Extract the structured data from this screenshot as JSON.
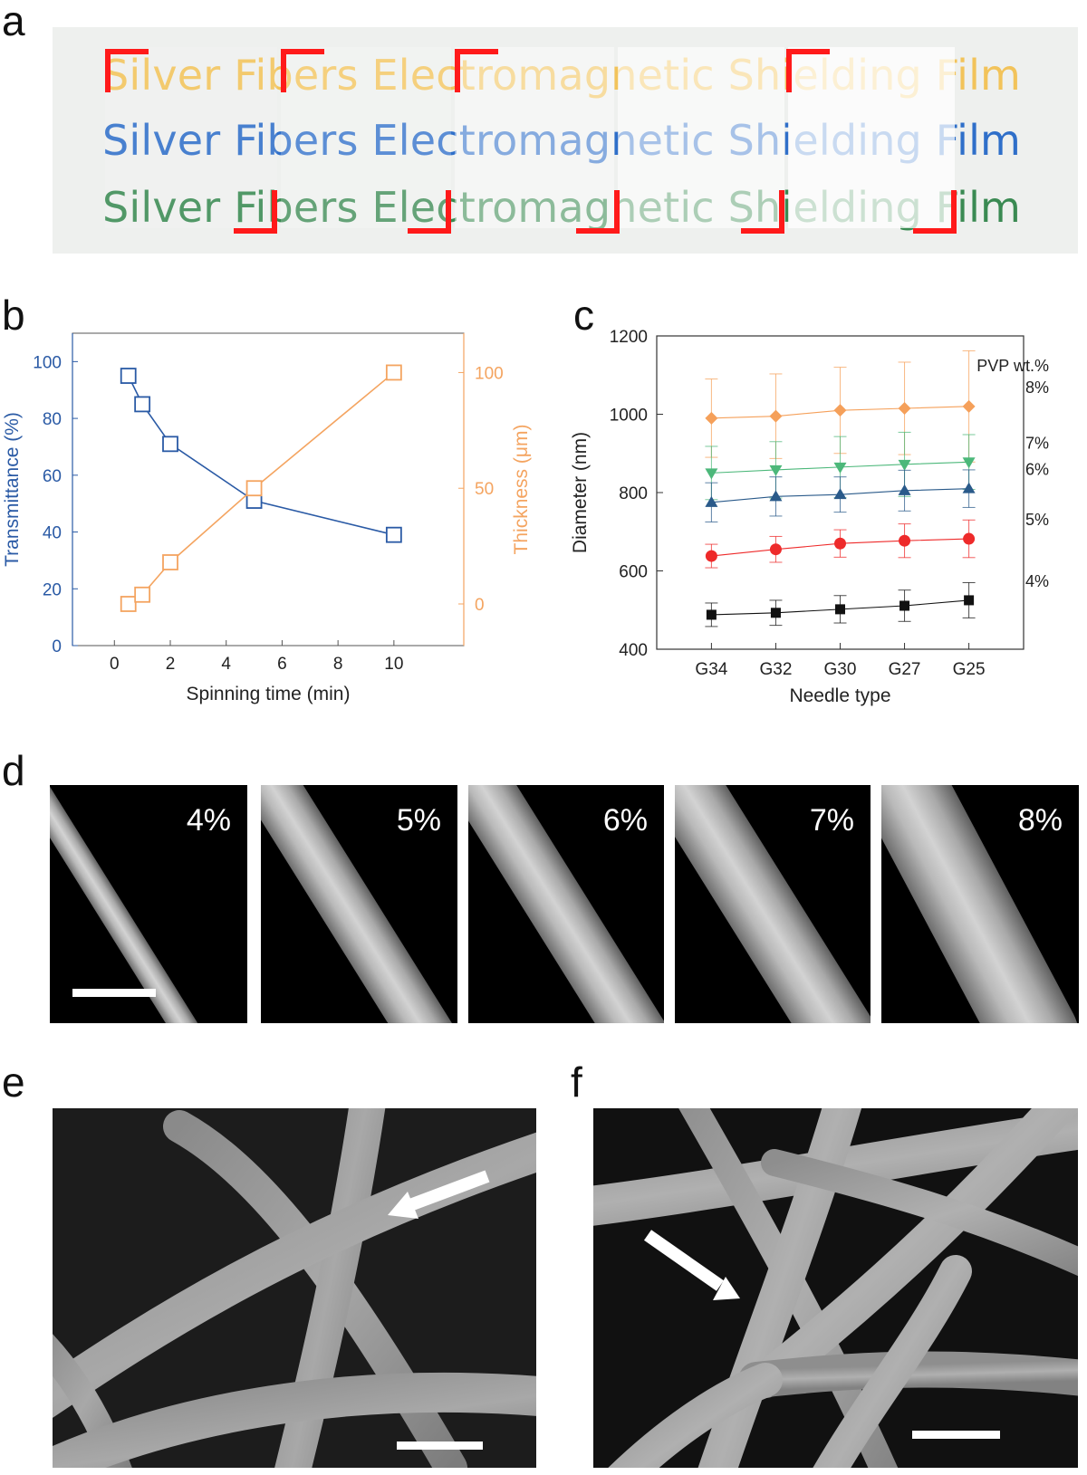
{
  "panels": {
    "a": {
      "label": "a",
      "film_text": "Silver Fibers Electromagnetic Shielding Film",
      "line_colors": [
        "#f2c35a",
        "#2f6fc9",
        "#3a8a52"
      ]
    },
    "b": {
      "label": "b"
    },
    "c": {
      "label": "c"
    },
    "d": {
      "label": "d",
      "images": [
        {
          "label": "4%"
        },
        {
          "label": "5%"
        },
        {
          "label": "6%"
        },
        {
          "label": "7%"
        },
        {
          "label": "8%"
        }
      ]
    },
    "e": {
      "label": "e"
    },
    "f": {
      "label": "f"
    }
  },
  "chart_data": [
    {
      "id": "panel-b",
      "type": "line",
      "xlabel": "Spinning time (min)",
      "ylabel_left": "Transmittance (%)",
      "ylabel_right": "Thickness (μm)",
      "xlim": [
        -1.5,
        12.5
      ],
      "xticks": [
        0,
        2,
        4,
        6,
        8,
        10
      ],
      "ylim_left": [
        0,
        110
      ],
      "yticks_left": [
        0,
        20,
        40,
        60,
        80,
        100
      ],
      "ylim_right": [
        -18,
        117
      ],
      "yticks_right": [
        0,
        50,
        100
      ],
      "series": [
        {
          "axis": "left",
          "color": "#2a5aa5",
          "marker": "open-square",
          "x": [
            0.5,
            1,
            2,
            5,
            10
          ],
          "y": [
            95,
            85,
            71,
            51,
            39
          ]
        },
        {
          "axis": "right",
          "color": "#f4a460",
          "marker": "open-square",
          "x": [
            0.5,
            1,
            2,
            5,
            10
          ],
          "y": [
            0,
            4,
            18,
            50,
            100
          ]
        }
      ]
    },
    {
      "id": "panel-c",
      "type": "scatter",
      "xlabel": "Needle type",
      "ylabel": "Diameter (nm)",
      "categories": [
        "G34",
        "G32",
        "G30",
        "G27",
        "G25"
      ],
      "ylim": [
        400,
        1200
      ],
      "yticks": [
        400,
        600,
        800,
        1000,
        1200
      ],
      "legend_title": "PVP wt.%",
      "series": [
        {
          "name": "8%",
          "color": "#f5a05a",
          "marker": "diamond",
          "values": [
            990,
            995,
            1010,
            1015,
            1020
          ],
          "errors": [
            100,
            108,
            110,
            118,
            142
          ]
        },
        {
          "name": "7%",
          "color": "#4cb87a",
          "marker": "triangle-down",
          "values": [
            850,
            858,
            865,
            872,
            878
          ],
          "errors": [
            68,
            72,
            78,
            82,
            70
          ]
        },
        {
          "name": "6%",
          "color": "#2a5a8a",
          "marker": "triangle-up",
          "values": [
            775,
            790,
            795,
            805,
            810
          ],
          "errors": [
            50,
            50,
            45,
            52,
            48
          ]
        },
        {
          "name": "5%",
          "color": "#ee2a2a",
          "marker": "circle",
          "values": [
            638,
            655,
            670,
            677,
            682
          ],
          "errors": [
            30,
            33,
            35,
            43,
            48
          ]
        },
        {
          "name": "4%",
          "color": "#111111",
          "marker": "square",
          "values": [
            488,
            493,
            502,
            511,
            525
          ],
          "errors": [
            30,
            32,
            35,
            40,
            45
          ]
        }
      ]
    }
  ]
}
